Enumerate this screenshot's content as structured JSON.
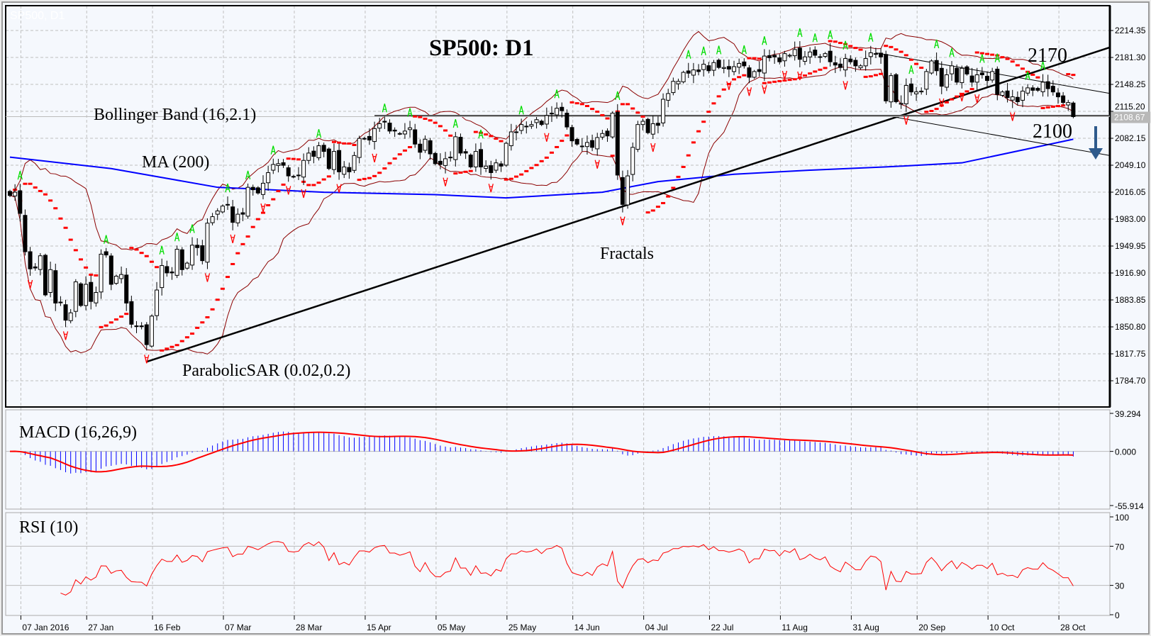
{
  "watermark": "SP500, D1",
  "annotations": {
    "title": "SP500: D1",
    "bollinger": "Bollinger Band (16,2.1)",
    "ma": "MA (200)",
    "sar": "ParabolicSAR (0.02,0.2)",
    "fractals": "Fractals",
    "level_upper": "2170",
    "level_lower": "2100",
    "macd": "MACD (16,26,9)",
    "rsi": "RSI (10)"
  },
  "colors": {
    "background": "#f5f8fd",
    "bull_candle": "#ffffff",
    "bear_candle": "#000000",
    "bollinger": "#8b0000",
    "ma200": "#0000ff",
    "sar": "#ff0000",
    "fractal_up": "#00dd00",
    "fractal_down": "#ff0000",
    "macd_histogram": "#0000ff",
    "macd_signal": "#ff0000",
    "rsi": "#ff0000",
    "arrow": "#2e5a8c"
  },
  "chart_data": {
    "type": "candlestick",
    "title": "SP500: D1",
    "current_price": "2108.67",
    "price_ticks": [
      "2214.35",
      "2181.30",
      "2148.25",
      "2115.20",
      "2082.15",
      "2049.10",
      "2016.05",
      "1983.00",
      "1949.95",
      "1916.90",
      "1883.85",
      "1850.80",
      "1817.75",
      "1784.70"
    ],
    "ylim": [
      1784.7,
      2214.35
    ],
    "date_labels": [
      [
        "2016-01-07",
        "07 Jan 2016"
      ],
      [
        "2016-01-27",
        "27 Jan"
      ],
      [
        "2016-02-16",
        "16 Feb"
      ],
      [
        "2016-03-07",
        "07 Mar"
      ],
      [
        "2016-03-28",
        "28 Mar"
      ],
      [
        "2016-04-15",
        "15 Apr"
      ],
      [
        "2016-05-05",
        "05 May"
      ],
      [
        "2016-05-25",
        "25 May"
      ],
      [
        "2016-06-14",
        "14 Jun"
      ],
      [
        "2016-07-05",
        "04 Jul"
      ],
      [
        "2016-07-22",
        "22 Jul"
      ],
      [
        "2016-08-11",
        "11 Aug"
      ],
      [
        "2016-08-31",
        "31 Aug"
      ],
      [
        "2016-09-20",
        "20 Sep"
      ],
      [
        "2016-10-10",
        "10 Oct"
      ],
      [
        "2016-10-28",
        "28 Oct"
      ]
    ],
    "bars": [
      [
        "2016-01-04",
        2012
      ],
      [
        "2016-01-05",
        2016
      ],
      [
        "2016-01-06",
        1990
      ],
      [
        "2016-01-07",
        1943
      ],
      [
        "2016-01-08",
        1922
      ],
      [
        "2016-01-11",
        1923
      ],
      [
        "2016-01-12",
        1938
      ],
      [
        "2016-01-13",
        1890
      ],
      [
        "2016-01-14",
        1921
      ],
      [
        "2016-01-15",
        1880
      ],
      [
        "2016-01-19",
        1881
      ],
      [
        "2016-01-20",
        1859
      ],
      [
        "2016-01-21",
        1868
      ],
      [
        "2016-01-22",
        1906
      ],
      [
        "2016-01-25",
        1877
      ],
      [
        "2016-01-26",
        1903
      ],
      [
        "2016-01-27",
        1882
      ],
      [
        "2016-01-28",
        1893
      ],
      [
        "2016-01-29",
        1940
      ],
      [
        "2016-02-01",
        1939
      ],
      [
        "2016-02-02",
        1903
      ],
      [
        "2016-02-03",
        1913
      ],
      [
        "2016-02-04",
        1915
      ],
      [
        "2016-02-05",
        1880
      ],
      [
        "2016-02-08",
        1854
      ],
      [
        "2016-02-09",
        1852
      ],
      [
        "2016-02-10",
        1851
      ],
      [
        "2016-02-11",
        1829
      ],
      [
        "2016-02-12",
        1864
      ],
      [
        "2016-02-16",
        1896
      ],
      [
        "2016-02-17",
        1926
      ],
      [
        "2016-02-18",
        1917
      ],
      [
        "2016-02-19",
        1917
      ],
      [
        "2016-02-22",
        1946
      ],
      [
        "2016-02-23",
        1921
      ],
      [
        "2016-02-24",
        1929
      ],
      [
        "2016-02-25",
        1951
      ],
      [
        "2016-02-26",
        1948
      ],
      [
        "2016-02-29",
        1932
      ],
      [
        "2016-03-01",
        1978
      ],
      [
        "2016-03-02",
        1986
      ],
      [
        "2016-03-03",
        1993
      ],
      [
        "2016-03-04",
        1999
      ],
      [
        "2016-03-07",
        2001
      ],
      [
        "2016-03-08",
        1979
      ],
      [
        "2016-03-09",
        1989
      ],
      [
        "2016-03-10",
        1989
      ],
      [
        "2016-03-11",
        2022
      ],
      [
        "2016-03-14",
        2019
      ],
      [
        "2016-03-15",
        2015
      ],
      [
        "2016-03-16",
        2027
      ],
      [
        "2016-03-17",
        2040
      ],
      [
        "2016-03-18",
        2050
      ],
      [
        "2016-03-21",
        2051
      ],
      [
        "2016-03-22",
        2049
      ],
      [
        "2016-03-23",
        2036
      ],
      [
        "2016-03-24",
        2035
      ],
      [
        "2016-03-28",
        2037
      ],
      [
        "2016-03-29",
        2055
      ],
      [
        "2016-03-30",
        2064
      ],
      [
        "2016-03-31",
        2060
      ],
      [
        "2016-04-01",
        2073
      ],
      [
        "2016-04-04",
        2066
      ],
      [
        "2016-04-05",
        2045
      ],
      [
        "2016-04-06",
        2066
      ],
      [
        "2016-04-07",
        2041
      ],
      [
        "2016-04-08",
        2047
      ],
      [
        "2016-04-11",
        2041
      ],
      [
        "2016-04-12",
        2061
      ],
      [
        "2016-04-13",
        2082
      ],
      [
        "2016-04-14",
        2082
      ],
      [
        "2016-04-15",
        2080
      ],
      [
        "2016-04-18",
        2094
      ],
      [
        "2016-04-19",
        2100
      ],
      [
        "2016-04-20",
        2102
      ],
      [
        "2016-04-21",
        2091
      ],
      [
        "2016-04-22",
        2091
      ],
      [
        "2016-04-25",
        2088
      ],
      [
        "2016-04-26",
        2091
      ],
      [
        "2016-04-27",
        2095
      ],
      [
        "2016-04-28",
        2075
      ],
      [
        "2016-04-29",
        2065
      ],
      [
        "2016-05-02",
        2081
      ],
      [
        "2016-05-03",
        2063
      ],
      [
        "2016-05-04",
        2051
      ],
      [
        "2016-05-05",
        2050
      ],
      [
        "2016-05-06",
        2057
      ],
      [
        "2016-05-09",
        2059
      ],
      [
        "2016-05-10",
        2084
      ],
      [
        "2016-05-11",
        2064
      ],
      [
        "2016-05-12",
        2064
      ],
      [
        "2016-05-13",
        2047
      ],
      [
        "2016-05-16",
        2066
      ],
      [
        "2016-05-17",
        2047
      ],
      [
        "2016-05-18",
        2048
      ],
      [
        "2016-05-19",
        2040
      ],
      [
        "2016-05-20",
        2052
      ],
      [
        "2016-05-23",
        2048
      ],
      [
        "2016-05-24",
        2076
      ],
      [
        "2016-05-25",
        2090
      ],
      [
        "2016-05-26",
        2090
      ],
      [
        "2016-05-27",
        2099
      ],
      [
        "2016-05-31",
        2097
      ],
      [
        "2016-06-01",
        2099
      ],
      [
        "2016-06-02",
        2105
      ],
      [
        "2016-06-03",
        2099
      ],
      [
        "2016-06-06",
        2110
      ],
      [
        "2016-06-07",
        2112
      ],
      [
        "2016-06-08",
        2119
      ],
      [
        "2016-06-09",
        2116
      ],
      [
        "2016-06-10",
        2096
      ],
      [
        "2016-06-13",
        2079
      ],
      [
        "2016-06-14",
        2075
      ],
      [
        "2016-06-15",
        2072
      ],
      [
        "2016-06-16",
        2077
      ],
      [
        "2016-06-17",
        2071
      ],
      [
        "2016-06-20",
        2083
      ],
      [
        "2016-06-21",
        2088
      ],
      [
        "2016-06-22",
        2085
      ],
      [
        "2016-06-23",
        2113
      ],
      [
        "2016-06-24",
        2037
      ],
      [
        "2016-06-27",
        2001
      ],
      [
        "2016-06-28",
        2036
      ],
      [
        "2016-06-29",
        2071
      ],
      [
        "2016-06-30",
        2099
      ],
      [
        "2016-07-01",
        2103
      ],
      [
        "2016-07-05",
        2089
      ],
      [
        "2016-07-06",
        2100
      ],
      [
        "2016-07-07",
        2098
      ],
      [
        "2016-07-08",
        2130
      ],
      [
        "2016-07-11",
        2137
      ],
      [
        "2016-07-12",
        2152
      ],
      [
        "2016-07-13",
        2152
      ],
      [
        "2016-07-14",
        2163
      ],
      [
        "2016-07-15",
        2162
      ],
      [
        "2016-07-18",
        2166
      ],
      [
        "2016-07-19",
        2164
      ],
      [
        "2016-07-20",
        2173
      ],
      [
        "2016-07-21",
        2165
      ],
      [
        "2016-07-22",
        2175
      ],
      [
        "2016-07-25",
        2169
      ],
      [
        "2016-07-26",
        2169
      ],
      [
        "2016-07-27",
        2167
      ],
      [
        "2016-07-28",
        2170
      ],
      [
        "2016-07-29",
        2174
      ],
      [
        "2016-08-01",
        2171
      ],
      [
        "2016-08-02",
        2157
      ],
      [
        "2016-08-03",
        2164
      ],
      [
        "2016-08-04",
        2164
      ],
      [
        "2016-08-05",
        2183
      ],
      [
        "2016-08-08",
        2181
      ],
      [
        "2016-08-09",
        2182
      ],
      [
        "2016-08-10",
        2176
      ],
      [
        "2016-08-11",
        2186
      ],
      [
        "2016-08-12",
        2184
      ],
      [
        "2016-08-15",
        2191
      ],
      [
        "2016-08-16",
        2179
      ],
      [
        "2016-08-17",
        2182
      ],
      [
        "2016-08-18",
        2188
      ],
      [
        "2016-08-19",
        2184
      ],
      [
        "2016-08-22",
        2182
      ],
      [
        "2016-08-23",
        2186
      ],
      [
        "2016-08-24",
        2176
      ],
      [
        "2016-08-25",
        2172
      ],
      [
        "2016-08-26",
        2169
      ],
      [
        "2016-08-29",
        2180
      ],
      [
        "2016-08-30",
        2176
      ],
      [
        "2016-08-31",
        2171
      ],
      [
        "2016-09-01",
        2171
      ],
      [
        "2016-09-02",
        2180
      ],
      [
        "2016-09-06",
        2187
      ],
      [
        "2016-09-07",
        2186
      ],
      [
        "2016-09-08",
        2182
      ],
      [
        "2016-09-09",
        2128
      ],
      [
        "2016-09-12",
        2159
      ],
      [
        "2016-09-13",
        2127
      ],
      [
        "2016-09-14",
        2125
      ],
      [
        "2016-09-15",
        2147
      ],
      [
        "2016-09-16",
        2139
      ],
      [
        "2016-09-19",
        2139
      ],
      [
        "2016-09-20",
        2140
      ],
      [
        "2016-09-21",
        2164
      ],
      [
        "2016-09-22",
        2177
      ],
      [
        "2016-09-23",
        2165
      ],
      [
        "2016-09-26",
        2146
      ],
      [
        "2016-09-27",
        2160
      ],
      [
        "2016-09-28",
        2171
      ],
      [
        "2016-09-29",
        2151
      ],
      [
        "2016-09-30",
        2168
      ],
      [
        "2016-10-03",
        2161
      ],
      [
        "2016-10-04",
        2151
      ],
      [
        "2016-10-05",
        2160
      ],
      [
        "2016-10-06",
        2160
      ],
      [
        "2016-10-07",
        2153
      ],
      [
        "2016-10-10",
        2164
      ],
      [
        "2016-10-11",
        2136
      ],
      [
        "2016-10-12",
        2139
      ],
      [
        "2016-10-13",
        2132
      ],
      [
        "2016-10-14",
        2133
      ],
      [
        "2016-10-17",
        2127
      ],
      [
        "2016-10-18",
        2140
      ],
      [
        "2016-10-19",
        2144
      ],
      [
        "2016-10-20",
        2141
      ],
      [
        "2016-10-21",
        2141
      ],
      [
        "2016-10-24",
        2151
      ],
      [
        "2016-10-25",
        2143
      ],
      [
        "2016-10-26",
        2139
      ],
      [
        "2016-10-27",
        2133
      ],
      [
        "2016-10-28",
        2126
      ],
      [
        "2016-10-31",
        2126
      ],
      [
        "2016-11-01",
        2108.67
      ]
    ],
    "ma200": [
      [
        "2016-01-04",
        2059
      ],
      [
        "2016-02-02",
        2045
      ],
      [
        "2016-03-03",
        2022
      ],
      [
        "2016-04-04",
        2016
      ],
      [
        "2016-05-04",
        2013
      ],
      [
        "2016-05-24",
        2009
      ],
      [
        "2016-06-21",
        2016
      ],
      [
        "2016-07-07",
        2029
      ],
      [
        "2016-07-28",
        2038
      ],
      [
        "2016-08-18",
        2043
      ],
      [
        "2016-09-09",
        2047
      ],
      [
        "2016-09-30",
        2052
      ],
      [
        "2016-11-01",
        2081
      ]
    ],
    "trendlines": [
      {
        "from": [
          "2016-02-11",
          1808
        ],
        "to": [
          "2016-11-01",
          2179
        ],
        "extend": true,
        "weight": "bold"
      },
      {
        "from": [
          "2016-09-07",
          2187
        ],
        "to": [
          "2016-11-01",
          2145
        ],
        "extend": true,
        "weight": "thin"
      },
      {
        "from": [
          "2016-09-12",
          2109
        ],
        "to": [
          "2016-11-01",
          2069
        ],
        "extend": true,
        "weight": "thin"
      }
    ],
    "support_level": {
      "from": "2016-04-18",
      "price": 2110
    },
    "indicators": {
      "bollinger": {
        "period": 16,
        "deviation": 2.1
      },
      "parabolic_sar": {
        "step": 0.02,
        "max": 0.2
      },
      "macd": {
        "fast": 16,
        "slow": 26,
        "signal": 9,
        "ylim": [
          -55.914,
          39.294
        ],
        "ticks": [
          "39.294",
          "0.000",
          "-55.914"
        ]
      },
      "rsi": {
        "period": 10,
        "ylim": [
          0,
          100
        ],
        "ticks": [
          "100",
          "70",
          "30",
          "0"
        ],
        "levels": [
          70,
          30
        ]
      }
    }
  }
}
